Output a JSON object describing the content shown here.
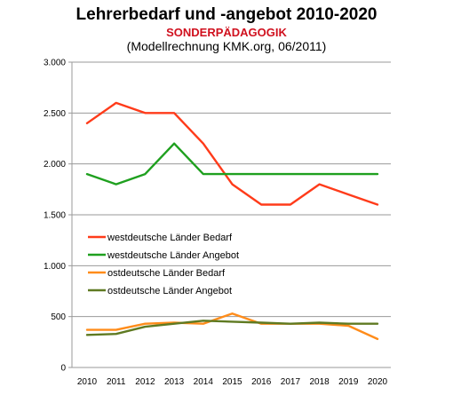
{
  "chart_data": {
    "type": "line",
    "title": "Lehrerbedarf und -angebot 2010-2020",
    "subtitle": "SONDERPÄDAGOGIK",
    "note": "(Modellrechnung KMK.org, 06/2011)",
    "xlabel": "",
    "ylabel": "",
    "x": [
      "2010",
      "2011",
      "2012",
      "2013",
      "2014",
      "2015",
      "2016",
      "2017",
      "2018",
      "2019",
      "2020"
    ],
    "ylim": [
      0,
      3000
    ],
    "yticks": [
      0,
      500,
      1000,
      1500,
      2000,
      2500,
      3000
    ],
    "ytick_labels": [
      "0",
      "500",
      "1.000",
      "1.500",
      "2.000",
      "2.500",
      "3.000"
    ],
    "grid": "horizontal",
    "legend_position": "center-left",
    "series": [
      {
        "name": "westdeutsche Länder Bedarf",
        "color": "#ff3b1a",
        "values": [
          2400,
          2600,
          2500,
          2500,
          2200,
          1800,
          1600,
          1600,
          1800,
          1700,
          1600
        ]
      },
      {
        "name": "westdeutsche Länder Angebot",
        "color": "#1fa01f",
        "values": [
          1900,
          1800,
          1900,
          2200,
          1900,
          1900,
          1900,
          1900,
          1900,
          1900,
          1900
        ]
      },
      {
        "name": "ostdeutsche Länder Bedarf",
        "color": "#ff8c1a",
        "values": [
          370,
          370,
          430,
          440,
          430,
          530,
          430,
          430,
          430,
          410,
          280
        ]
      },
      {
        "name": "ostdeutsche Länder Angebot",
        "color": "#5f7a22",
        "values": [
          320,
          330,
          400,
          430,
          460,
          450,
          440,
          430,
          440,
          430,
          430
        ]
      }
    ],
    "colors": {
      "subtitle": "#d0101e",
      "gridline": "#9a9a9a",
      "axis": "#9a9a9a"
    }
  }
}
